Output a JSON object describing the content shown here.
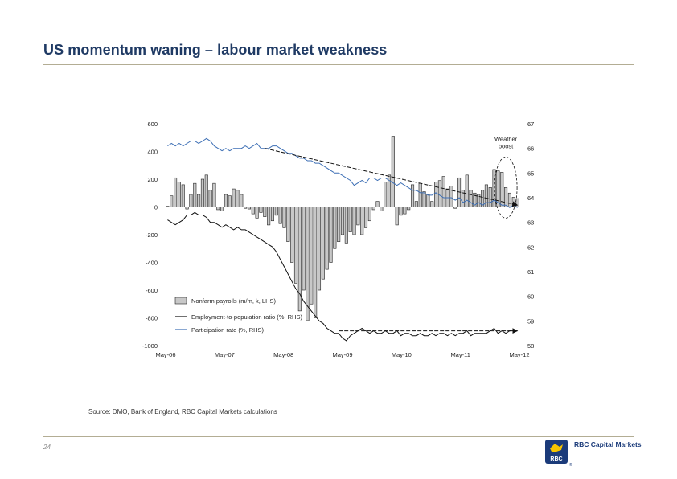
{
  "page": {
    "title": "US momentum waning – labour market weakness",
    "source": "Source: DMO, Bank of England, RBC Capital Markets calculations",
    "page_number": "24",
    "logo_text": "RBC Capital Markets",
    "logo_mark_text": "RBC",
    "logo_symbol": "®"
  },
  "colors": {
    "title": "#1f3a64",
    "bar_fill": "#c8c8c8",
    "bar_stroke": "#222222",
    "emp_ratio": "#111111",
    "participation": "#3d6fb5",
    "logo_blue": "#1b3b7a",
    "logo_yellow": "#f5c400"
  },
  "chart_data": {
    "type": "bar+line",
    "x_range": [
      2006.33,
      2012.37
    ],
    "x_tick_labels": [
      "May-06",
      "May-07",
      "May-08",
      "May-09",
      "May-10",
      "May-11",
      "May-12"
    ],
    "left_axis": {
      "label": "Nonfarm payrolls (m/m, k, LHS)",
      "range": [
        -1000,
        600
      ],
      "ticks": [
        -1000,
        -800,
        -600,
        -400,
        -200,
        0,
        200,
        400,
        600
      ]
    },
    "right_axis": {
      "label": "%",
      "range": [
        58,
        67
      ],
      "ticks": [
        58,
        59,
        60,
        61,
        62,
        63,
        64,
        65,
        66,
        67
      ]
    },
    "series": [
      {
        "name": "Nonfarm payrolls (m/m, k, LHS)",
        "type": "bar",
        "axis": "left",
        "start": "May-06",
        "values": [
          5,
          80,
          210,
          180,
          160,
          -15,
          90,
          170,
          90,
          200,
          230,
          120,
          170,
          -20,
          -30,
          90,
          80,
          130,
          120,
          90,
          -10,
          -15,
          -50,
          -80,
          -40,
          -70,
          -130,
          -100,
          -60,
          -120,
          -150,
          -250,
          -400,
          -550,
          -750,
          -600,
          -820,
          -700,
          -800,
          -600,
          -520,
          -450,
          -400,
          -300,
          -250,
          -200,
          -260,
          -180,
          -200,
          -130,
          -200,
          -150,
          -100,
          -20,
          40,
          -30,
          180,
          230,
          510,
          -130,
          -60,
          -50,
          -20,
          160,
          40,
          170,
          110,
          90,
          40,
          180,
          190,
          220,
          130,
          150,
          -10,
          210,
          120,
          230,
          120,
          100,
          90,
          120,
          160,
          140,
          270,
          260,
          250,
          140,
          100,
          70,
          60
        ]
      },
      {
        "name": "Employment-to-population ratio (%, RHS)",
        "type": "line",
        "axis": "right",
        "start": "May-06",
        "values": [
          63.1,
          63.0,
          62.9,
          63.0,
          63.1,
          63.3,
          63.3,
          63.4,
          63.3,
          63.3,
          63.2,
          63.0,
          63.0,
          62.9,
          62.8,
          62.9,
          62.8,
          62.7,
          62.8,
          62.7,
          62.7,
          62.6,
          62.5,
          62.4,
          62.3,
          62.2,
          62.1,
          62.0,
          61.8,
          61.5,
          61.2,
          60.9,
          60.6,
          60.3,
          60.1,
          59.8,
          59.6,
          59.4,
          59.2,
          59.0,
          58.9,
          58.7,
          58.6,
          58.5,
          58.5,
          58.3,
          58.2,
          58.4,
          58.5,
          58.6,
          58.7,
          58.6,
          58.5,
          58.6,
          58.5,
          58.5,
          58.6,
          58.5,
          58.5,
          58.6,
          58.4,
          58.5,
          58.5,
          58.4,
          58.4,
          58.5,
          58.4,
          58.4,
          58.5,
          58.4,
          58.5,
          58.5,
          58.4,
          58.5,
          58.4,
          58.5,
          58.5,
          58.6,
          58.4,
          58.5,
          58.5,
          58.5,
          58.5,
          58.6,
          58.7,
          58.5,
          58.6,
          58.5,
          58.6,
          58.6,
          58.6
        ]
      },
      {
        "name": "Participation rate (%, RHS)",
        "type": "line",
        "axis": "right",
        "start": "May-06",
        "values": [
          66.1,
          66.2,
          66.1,
          66.2,
          66.1,
          66.2,
          66.3,
          66.3,
          66.2,
          66.3,
          66.4,
          66.3,
          66.1,
          66.0,
          65.9,
          66.0,
          65.9,
          66.0,
          66.0,
          66.0,
          66.1,
          66.0,
          66.1,
          66.2,
          66.0,
          66.0,
          66.0,
          66.1,
          66.1,
          66.0,
          65.9,
          65.8,
          65.8,
          65.7,
          65.6,
          65.6,
          65.5,
          65.5,
          65.4,
          65.4,
          65.3,
          65.2,
          65.1,
          65.0,
          65.0,
          64.9,
          64.8,
          64.7,
          64.5,
          64.6,
          64.7,
          64.6,
          64.8,
          64.8,
          64.7,
          64.8,
          64.8,
          64.7,
          64.6,
          64.5,
          64.6,
          64.5,
          64.4,
          64.3,
          64.3,
          64.2,
          64.2,
          64.1,
          64.1,
          64.2,
          64.1,
          64.0,
          64.0,
          64.0,
          63.9,
          64.0,
          63.8,
          63.9,
          63.8,
          63.7,
          63.8,
          63.7,
          63.8,
          63.8,
          63.9,
          63.8,
          63.7,
          63.7,
          63.6,
          63.7,
          63.6
        ]
      }
    ],
    "annotations": [
      {
        "text": "Weather boost",
        "x": "Feb-12",
        "y_left": 500
      }
    ],
    "legend": {
      "placement": "bottom-center",
      "entries": [
        "Nonfarm payrolls (m/m, k, LHS)",
        "Employment-to-population ratio (%, RHS)",
        "Participation rate (%, RHS)"
      ]
    }
  }
}
